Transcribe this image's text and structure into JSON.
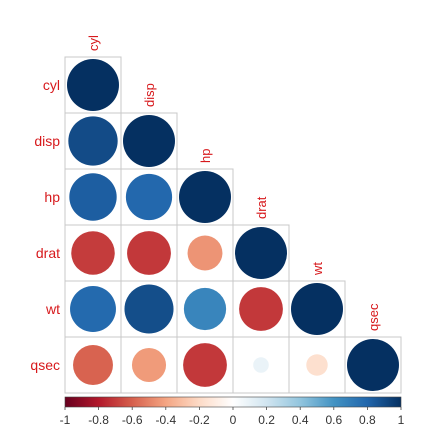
{
  "chart_data": {
    "type": "heatmap",
    "variables": [
      "cyl",
      "disp",
      "hp",
      "drat",
      "wt",
      "qsec"
    ],
    "layout": "lower-triangle correlation plot with circles",
    "matrix": [
      [
        1.0,
        0.9,
        0.83,
        -0.7,
        0.78,
        -0.59
      ],
      [
        0.9,
        1.0,
        0.79,
        -0.71,
        0.89,
        -0.43
      ],
      [
        0.83,
        0.79,
        1.0,
        -0.45,
        0.66,
        -0.71
      ],
      [
        -0.7,
        -0.71,
        -0.45,
        1.0,
        -0.71,
        0.09
      ],
      [
        0.78,
        0.89,
        0.66,
        -0.71,
        1.0,
        -0.17
      ],
      [
        -0.59,
        -0.43,
        -0.71,
        0.09,
        -0.17,
        1.0
      ]
    ],
    "colorbar": {
      "range": [
        -1,
        1
      ],
      "ticks": [
        "-1",
        "-0.8",
        "-0.6",
        "-0.4",
        "-0.2",
        "0",
        "0.2",
        "0.4",
        "0.6",
        "0.8",
        "1"
      ],
      "colors": [
        "#67001f",
        "#b2182b",
        "#d6604d",
        "#f4a582",
        "#fddbc7",
        "#ffffff",
        "#d1e5f0",
        "#92c5de",
        "#4393c3",
        "#2166ac",
        "#053061"
      ]
    },
    "label_color": "#d7191c"
  }
}
